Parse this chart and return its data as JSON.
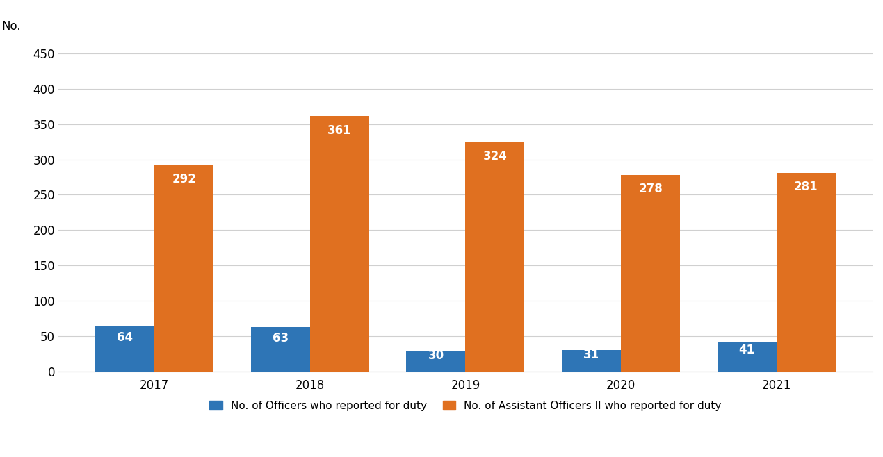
{
  "years": [
    "2017",
    "2018",
    "2019",
    "2020",
    "2021"
  ],
  "officers": [
    64,
    63,
    30,
    31,
    41
  ],
  "asst_officers": [
    292,
    361,
    324,
    278,
    281
  ],
  "officer_color": "#2E75B6",
  "asst_officer_color": "#E07020",
  "ylabel": "No.",
  "ylim": [
    0,
    470
  ],
  "yticks": [
    0,
    50,
    100,
    150,
    200,
    250,
    300,
    350,
    400,
    450
  ],
  "ytick_labels": [
    "0",
    "50",
    "100",
    "150",
    "200",
    "250",
    "300",
    "350",
    "400",
    "450"
  ],
  "legend_officer": "No. of Officers who reported for duty",
  "legend_asst": "No. of Assistant Officers II who reported for duty",
  "bar_width": 0.38,
  "label_fontsize": 12,
  "tick_fontsize": 12,
  "legend_fontsize": 11,
  "ylabel_fontsize": 12,
  "background_color": "#ffffff",
  "grid_color": "#d0d0d0"
}
